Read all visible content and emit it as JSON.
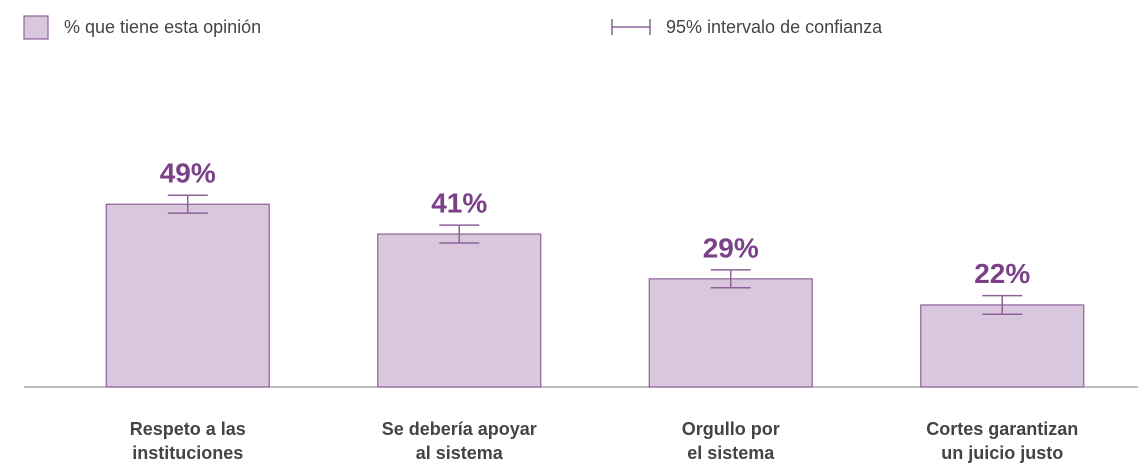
{
  "chart_data": {
    "type": "bar",
    "categories": [
      [
        "Respeto a las",
        "instituciones"
      ],
      [
        "Se debería apoyar",
        "al sistema"
      ],
      [
        "Orgullo por",
        "el sistema"
      ],
      [
        "Cortes garantizan",
        "un juicio justo"
      ]
    ],
    "series": [
      {
        "name": "% que tiene esta opinión",
        "color": "#d9c7dd",
        "edge_color": "#8e6299",
        "values": [
          49,
          41,
          29,
          22
        ],
        "value_labels": [
          "49%",
          "41%",
          "29%",
          "22%"
        ],
        "errors": [
          2.4,
          2.4,
          2.4,
          2.5
        ],
        "error_name": "95% intervalo de confianza"
      }
    ],
    "ylim": [
      0,
      100
    ]
  }
}
